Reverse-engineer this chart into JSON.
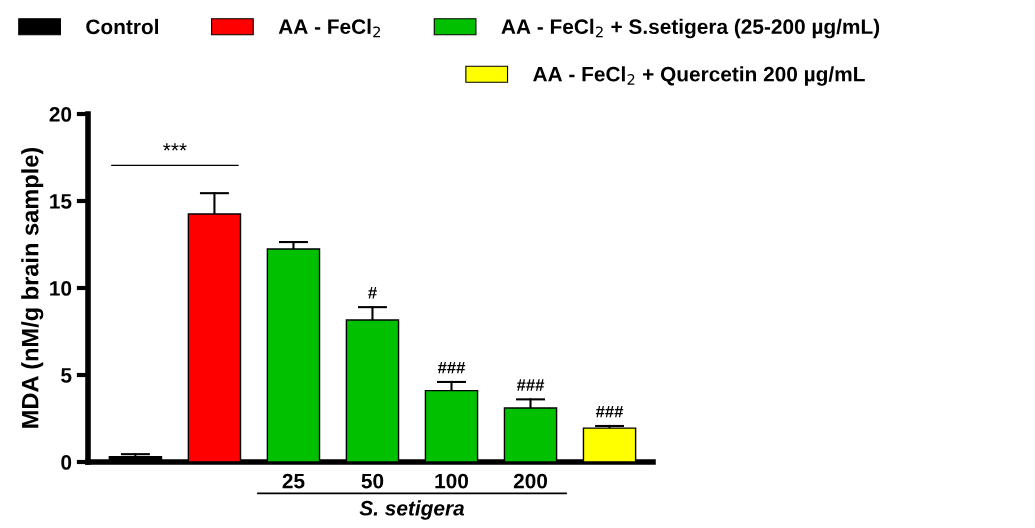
{
  "chart_data": {
    "type": "bar",
    "ylabel": "MDA (nM/g brain sample)",
    "xlabel": "S. setigera",
    "categories": [
      null,
      null,
      "25",
      "50",
      "100",
      "200",
      null
    ],
    "series": [
      {
        "name": "Control",
        "color": "#000000",
        "values": [
          0.3,
          null,
          null,
          null,
          null,
          null,
          null
        ],
        "errors": [
          0.15,
          null,
          null,
          null,
          null,
          null,
          null
        ]
      },
      {
        "name": "AA - FeCl$_{2}$",
        "color": "#ff0000",
        "values": [
          null,
          14.25,
          null,
          null,
          null,
          null,
          null
        ],
        "errors": [
          null,
          1.2,
          null,
          null,
          null,
          null,
          null
        ]
      },
      {
        "name": "AA - FeCl$_{2}$ + S.setigera (25-200 µg/mL)",
        "color": "#00c000",
        "values": [
          null,
          null,
          12.24,
          8.16,
          4.1,
          3.1,
          null
        ],
        "errors": [
          null,
          null,
          0.4,
          0.74,
          0.5,
          0.5,
          null
        ]
      },
      {
        "name": "AA - FeCl$_{2}$ + Quercetin 200 µg/mL",
        "color": "#ffff00",
        "values": [
          null,
          null,
          null,
          null,
          null,
          null,
          1.95
        ],
        "errors": [
          null,
          null,
          null,
          null,
          null,
          null,
          0.12
        ]
      }
    ],
    "ylim": [
      0,
      20
    ],
    "yticks": [
      0,
      5,
      10,
      15,
      20
    ],
    "grid": false,
    "legend": "top",
    "annotations": [
      "***",
      "#",
      "###",
      "###",
      "###"
    ]
  }
}
